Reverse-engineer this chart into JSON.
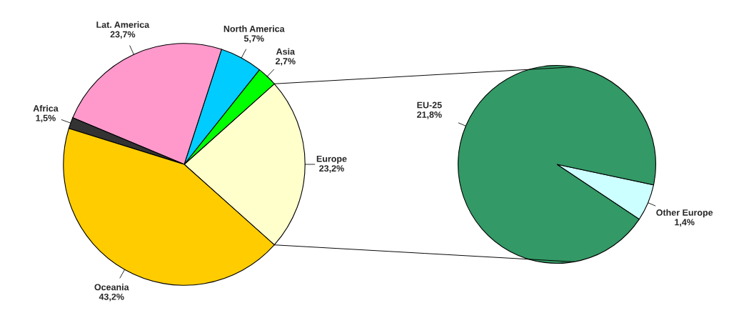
{
  "chart_data": [
    {
      "type": "pie",
      "categories": [
        "Europe",
        "Asia",
        "North America",
        "Lat. America",
        "Africa",
        "Oceania"
      ],
      "values": [
        23.2,
        2.7,
        5.7,
        23.7,
        1.5,
        43.2
      ],
      "value_labels": [
        "23,2%",
        "2,7%",
        "5,7%",
        "23,7%",
        "1,5%",
        "43,2%"
      ],
      "colors": [
        "#ffffcc",
        "#00ff00",
        "#00ccff",
        "#ff99cc",
        "#333333",
        "#ffcc00"
      ]
    },
    {
      "type": "pie",
      "categories": [
        "Other Europe",
        "EU-25"
      ],
      "values": [
        1.4,
        21.8
      ],
      "value_labels": [
        "1,4%",
        "21,8%"
      ],
      "colors": [
        "#ccffff",
        "#339966"
      ]
    }
  ]
}
